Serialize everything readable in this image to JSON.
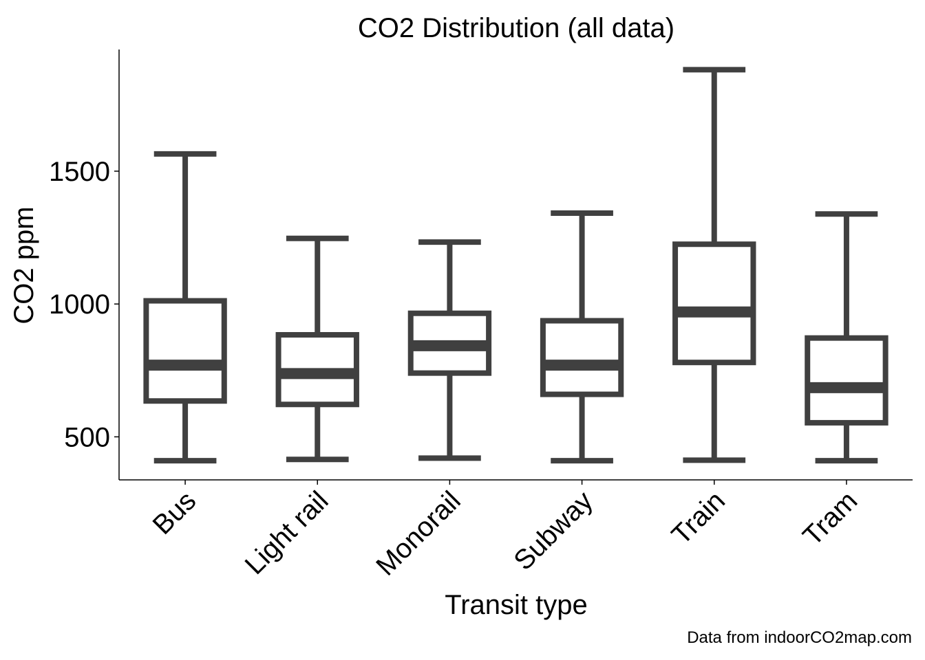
{
  "chart_data": {
    "type": "boxplot",
    "title": "CO2 Distribution (all data)",
    "xlabel": "Transit type",
    "ylabel": "CO2 ppm",
    "caption": "Data from indoorCO2map.com",
    "ylim": [
      338,
      1958
    ],
    "yticks": [
      500,
      1000,
      1500
    ],
    "categories": [
      "Bus",
      "Light rail",
      "Monorail",
      "Subway",
      "Train",
      "Tram"
    ],
    "boxes": [
      {
        "category": "Bus",
        "whisker_low": 410,
        "q1": 635,
        "median": 770,
        "q3": 1012,
        "whisker_high": 1565
      },
      {
        "category": "Light rail",
        "whisker_low": 415,
        "q1": 622,
        "median": 738,
        "q3": 884,
        "whisker_high": 1247
      },
      {
        "category": "Monorail",
        "whisker_low": 420,
        "q1": 740,
        "median": 843,
        "q3": 965,
        "whisker_high": 1233
      },
      {
        "category": "Subway",
        "whisker_low": 410,
        "q1": 660,
        "median": 770,
        "q3": 937,
        "whisker_high": 1342
      },
      {
        "category": "Train",
        "whisker_low": 412,
        "q1": 780,
        "median": 970,
        "q3": 1225,
        "whisker_high": 1882
      },
      {
        "category": "Tram",
        "whisker_low": 410,
        "q1": 553,
        "median": 685,
        "q3": 872,
        "whisker_high": 1339
      }
    ],
    "box_color": "#404040",
    "grid": false,
    "legend": "none"
  }
}
